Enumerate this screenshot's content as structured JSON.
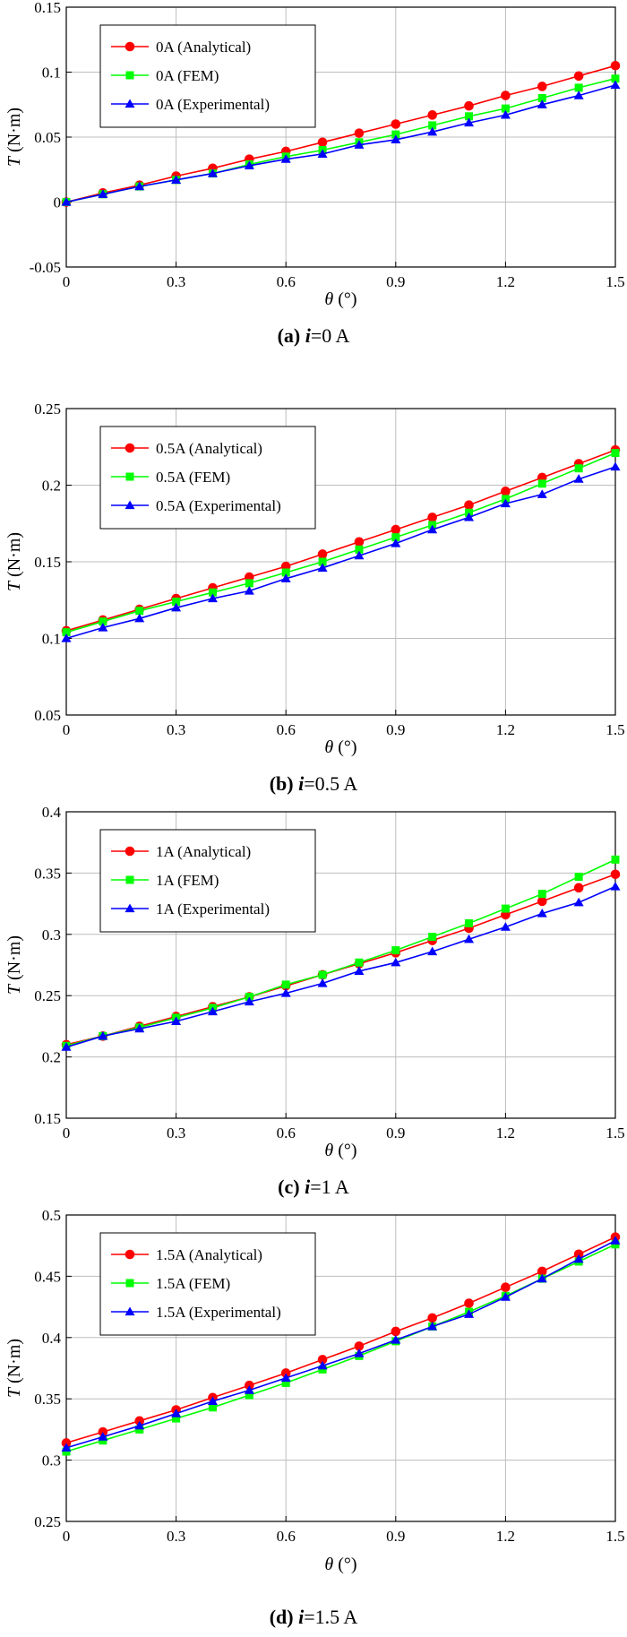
{
  "chart_data": [
    {
      "type": "line",
      "caption": {
        "letter": "(a)",
        "var": "i",
        "value": "=0 A"
      },
      "xlabel": {
        "var": "θ",
        "unit": " (°)"
      },
      "ylabel": {
        "var": "T",
        "unit": " (N·m)"
      },
      "xlim": [
        0,
        1.5
      ],
      "ylim": [
        -0.05,
        0.15
      ],
      "xticks": [
        "0",
        "0.3",
        "0.6",
        "0.9",
        "1.2",
        "1.5"
      ],
      "yticks": [
        "-0.05",
        "0",
        "0.05",
        "0.1",
        "0.15"
      ],
      "grid": true,
      "legend_position": "top-left",
      "x": [
        0,
        0.1,
        0.2,
        0.3,
        0.4,
        0.5,
        0.6,
        0.7,
        0.8,
        0.9,
        1.0,
        1.1,
        1.2,
        1.3,
        1.4,
        1.5
      ],
      "series": [
        {
          "name": "0A (Analytical)",
          "color": "#ff0000",
          "marker": "circle",
          "values": [
            0,
            0.007,
            0.013,
            0.02,
            0.026,
            0.033,
            0.039,
            0.046,
            0.053,
            0.06,
            0.067,
            0.074,
            0.082,
            0.089,
            0.097,
            0.105
          ]
        },
        {
          "name": "0A (FEM)",
          "color": "#00ff00",
          "marker": "square",
          "values": [
            0,
            0.006,
            0.012,
            0.017,
            0.022,
            0.029,
            0.035,
            0.04,
            0.046,
            0.052,
            0.059,
            0.066,
            0.072,
            0.08,
            0.088,
            0.095
          ]
        },
        {
          "name": "0A (Experimental)",
          "color": "#0000ff",
          "marker": "triangle",
          "values": [
            0,
            0.006,
            0.012,
            0.017,
            0.022,
            0.028,
            0.033,
            0.037,
            0.044,
            0.048,
            0.054,
            0.061,
            0.067,
            0.075,
            0.082,
            0.09
          ]
        }
      ]
    },
    {
      "type": "line",
      "caption": {
        "letter": "(b)",
        "var": "i",
        "value": "=0.5 A"
      },
      "xlabel": {
        "var": "θ",
        "unit": " (°)"
      },
      "ylabel": {
        "var": "T",
        "unit": " (N·m)"
      },
      "xlim": [
        0,
        1.5
      ],
      "ylim": [
        0.05,
        0.25
      ],
      "xticks": [
        "0",
        "0.3",
        "0.6",
        "0.9",
        "1.2",
        "1.5"
      ],
      "yticks": [
        "0.05",
        "0.1",
        "0.15",
        "0.2",
        "0.25"
      ],
      "grid": true,
      "legend_position": "top-left",
      "x": [
        0,
        0.1,
        0.2,
        0.3,
        0.4,
        0.5,
        0.6,
        0.7,
        0.8,
        0.9,
        1.0,
        1.1,
        1.2,
        1.3,
        1.4,
        1.5
      ],
      "series": [
        {
          "name": "0.5A (Analytical)",
          "color": "#ff0000",
          "marker": "circle",
          "values": [
            0.105,
            0.112,
            0.119,
            0.126,
            0.133,
            0.14,
            0.147,
            0.155,
            0.163,
            0.171,
            0.179,
            0.187,
            0.196,
            0.205,
            0.214,
            0.223
          ]
        },
        {
          "name": "0.5A (FEM)",
          "color": "#00ff00",
          "marker": "square",
          "values": [
            0.104,
            0.111,
            0.118,
            0.124,
            0.13,
            0.136,
            0.143,
            0.15,
            0.158,
            0.166,
            0.174,
            0.182,
            0.191,
            0.201,
            0.211,
            0.221
          ]
        },
        {
          "name": "0.5A (Experimental)",
          "color": "#0000ff",
          "marker": "triangle",
          "values": [
            0.1,
            0.107,
            0.113,
            0.12,
            0.126,
            0.131,
            0.139,
            0.146,
            0.154,
            0.162,
            0.171,
            0.179,
            0.188,
            0.194,
            0.204,
            0.212
          ]
        }
      ]
    },
    {
      "type": "line",
      "caption": {
        "letter": "(c)",
        "var": "i",
        "value": "=1 A"
      },
      "xlabel": {
        "var": "θ",
        "unit": " (°)"
      },
      "ylabel": {
        "var": "T",
        "unit": " (N·m)"
      },
      "xlim": [
        0,
        1.5
      ],
      "ylim": [
        0.15,
        0.4
      ],
      "xticks": [
        "0",
        "0.3",
        "0.6",
        "0.9",
        "1.2",
        "1.5"
      ],
      "yticks": [
        "0.15",
        "0.2",
        "0.25",
        "0.3",
        "0.35",
        "0.4"
      ],
      "grid": true,
      "legend_position": "top-left",
      "x": [
        0,
        0.1,
        0.2,
        0.3,
        0.4,
        0.5,
        0.6,
        0.7,
        0.8,
        0.9,
        1.0,
        1.1,
        1.2,
        1.3,
        1.4,
        1.5
      ],
      "series": [
        {
          "name": "1A (Analytical)",
          "color": "#ff0000",
          "marker": "circle",
          "values": [
            0.21,
            0.217,
            0.225,
            0.233,
            0.241,
            0.249,
            0.258,
            0.267,
            0.276,
            0.285,
            0.295,
            0.305,
            0.316,
            0.327,
            0.338,
            0.349
          ]
        },
        {
          "name": "1A (FEM)",
          "color": "#00ff00",
          "marker": "square",
          "values": [
            0.209,
            0.217,
            0.224,
            0.232,
            0.24,
            0.249,
            0.259,
            0.267,
            0.277,
            0.287,
            0.298,
            0.309,
            0.321,
            0.333,
            0.347,
            0.361
          ]
        },
        {
          "name": "1A (Experimental)",
          "color": "#0000ff",
          "marker": "triangle",
          "values": [
            0.208,
            0.217,
            0.223,
            0.229,
            0.237,
            0.245,
            0.252,
            0.26,
            0.27,
            0.277,
            0.286,
            0.296,
            0.306,
            0.317,
            0.326,
            0.339
          ]
        }
      ]
    },
    {
      "type": "line",
      "caption": {
        "letter": "(d)",
        "var": "i",
        "value": "=1.5 A"
      },
      "xlabel": {
        "var": "θ",
        "unit": " (°)"
      },
      "ylabel": {
        "var": "T",
        "unit": " (N·m)"
      },
      "xlim": [
        0,
        1.5
      ],
      "ylim": [
        0.25,
        0.5
      ],
      "xticks": [
        "0",
        "0.3",
        "0.6",
        "0.9",
        "1.2",
        "1.5"
      ],
      "yticks": [
        "0.25",
        "0.3",
        "0.35",
        "0.4",
        "0.45",
        "0.5"
      ],
      "grid": true,
      "legend_position": "top-left",
      "x": [
        0,
        0.1,
        0.2,
        0.3,
        0.4,
        0.5,
        0.6,
        0.7,
        0.8,
        0.9,
        1.0,
        1.1,
        1.2,
        1.3,
        1.4,
        1.5
      ],
      "series": [
        {
          "name": "1.5A (Analytical)",
          "color": "#ff0000",
          "marker": "circle",
          "values": [
            0.314,
            0.323,
            0.332,
            0.341,
            0.351,
            0.361,
            0.371,
            0.382,
            0.393,
            0.405,
            0.416,
            0.428,
            0.441,
            0.454,
            0.468,
            0.482
          ]
        },
        {
          "name": "1.5A (FEM)",
          "color": "#00ff00",
          "marker": "square",
          "values": [
            0.307,
            0.316,
            0.325,
            0.334,
            0.343,
            0.353,
            0.363,
            0.374,
            0.385,
            0.397,
            0.409,
            0.421,
            0.434,
            0.448,
            0.462,
            0.476
          ]
        },
        {
          "name": "1.5A (Experimental)",
          "color": "#0000ff",
          "marker": "triangle",
          "values": [
            0.31,
            0.319,
            0.328,
            0.338,
            0.348,
            0.357,
            0.367,
            0.377,
            0.387,
            0.398,
            0.409,
            0.419,
            0.433,
            0.448,
            0.464,
            0.479
          ]
        }
      ]
    }
  ]
}
